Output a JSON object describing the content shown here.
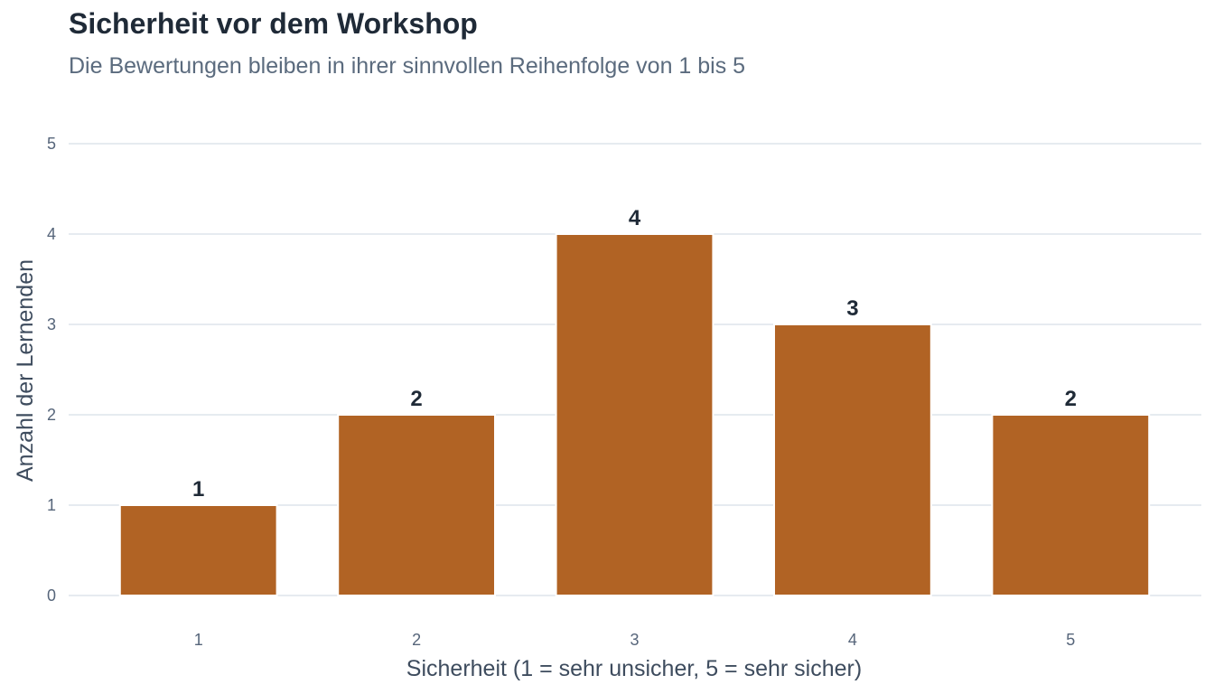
{
  "chart_data": {
    "type": "bar",
    "title": "Sicherheit vor dem Workshop",
    "subtitle": "Die Bewertungen bleiben in ihrer sinnvollen Reihenfolge von 1 bis 5",
    "xlabel": "Sicherheit (1 = sehr unsicher, 5 = sehr sicher)",
    "ylabel": "Anzahl der Lernenden",
    "categories": [
      "1",
      "2",
      "3",
      "4",
      "5"
    ],
    "values": [
      1,
      2,
      4,
      3,
      2
    ],
    "ylim": [
      0,
      5
    ],
    "yticks": [
      0,
      1,
      2,
      3,
      4,
      5
    ],
    "bar_color": "#b16324",
    "grid": true,
    "legend": "none"
  }
}
